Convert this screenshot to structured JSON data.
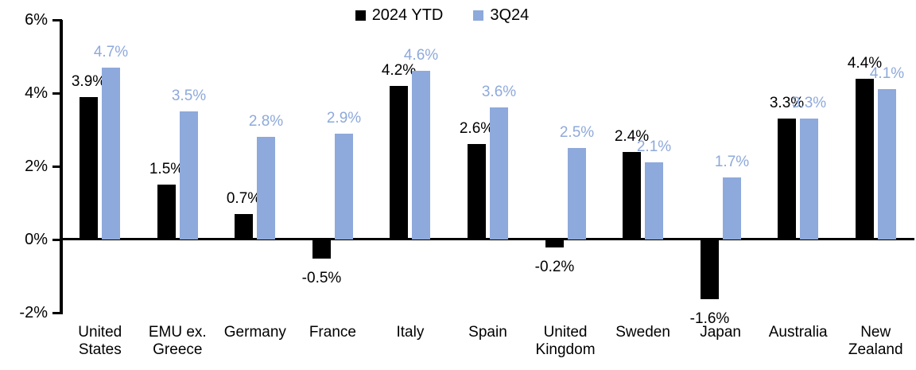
{
  "colors": {
    "series_black": "#000000",
    "series_blue": "#8EA9DB",
    "background": "#FFFFFF"
  },
  "legend": {
    "items": [
      {
        "label": "2024 YTD",
        "color": "#000000"
      },
      {
        "label": "3Q24",
        "color": "#8EA9DB"
      }
    ]
  },
  "chart_data": {
    "type": "bar",
    "title": "",
    "xlabel": "",
    "ylabel": "",
    "ylim": [
      -2,
      6
    ],
    "grid": false,
    "legend_position": "top-center",
    "unit": "%",
    "categories": [
      "United\nStates",
      "EMU ex.\nGreece",
      "Germany",
      "France",
      "Italy",
      "Spain",
      "United\nKingdom",
      "Sweden",
      "Japan",
      "Australia",
      "New\nZealand"
    ],
    "series": [
      {
        "name": "2024 YTD",
        "color": "#000000",
        "label_color": "#000000",
        "values": [
          3.9,
          1.5,
          0.7,
          -0.5,
          4.2,
          2.6,
          -0.2,
          2.4,
          -1.6,
          3.3,
          4.4
        ],
        "labels": [
          "3.9%",
          "1.5%",
          "0.7%",
          "-0.5%",
          "4.2%",
          "2.6%",
          "-0.2%",
          "2.4%",
          "-1.6%",
          "3.3%",
          "4.4%"
        ]
      },
      {
        "name": "3Q24",
        "color": "#8EA9DB",
        "label_color": "#8EA9DB",
        "values": [
          4.7,
          3.5,
          2.8,
          2.9,
          4.6,
          3.6,
          2.5,
          2.1,
          1.7,
          3.3,
          4.1
        ],
        "labels": [
          "4.7%",
          "3.5%",
          "2.8%",
          "2.9%",
          "4.6%",
          "3.6%",
          "2.5%",
          "2.1%",
          "1.7%",
          "3.3%",
          "4.1%"
        ]
      }
    ],
    "y_ticks": [
      {
        "value": 6,
        "label": "6%"
      },
      {
        "value": 4,
        "label": "4%"
      },
      {
        "value": 2,
        "label": "2%"
      },
      {
        "value": 0,
        "label": "0%"
      },
      {
        "value": -2,
        "label": "-2%"
      }
    ]
  }
}
